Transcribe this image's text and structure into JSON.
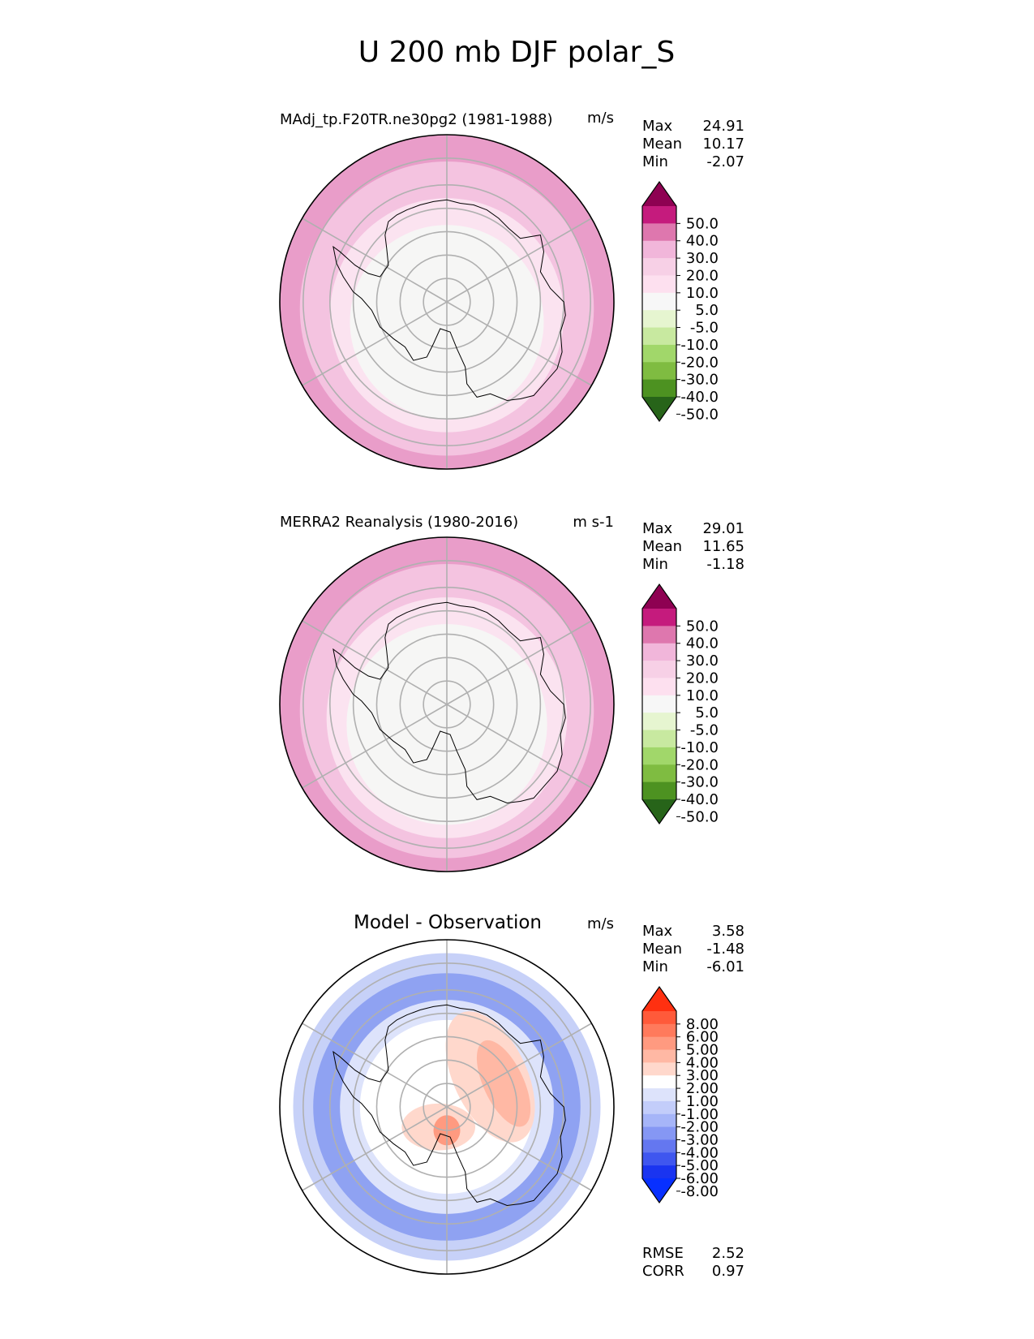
{
  "page": {
    "title": "U 200 mb DJF polar_S"
  },
  "panels": [
    {
      "title": "MAdj_tp.F20TR.ne30pg2 (1981-1988)",
      "title_style": "small",
      "units": "m/s",
      "stats": [
        {
          "label": "Max",
          "value": "24.91"
        },
        {
          "label": "Mean",
          "value": "10.17"
        },
        {
          "label": "Min",
          "value": "-2.07"
        }
      ],
      "colorbar": {
        "labels": [
          "50.0",
          "40.0",
          "30.0",
          "20.0",
          "10.0",
          "5.0",
          "-5.0",
          "-10.0",
          "-20.0",
          "-30.0",
          "-40.0",
          "-50.0"
        ],
        "colors": [
          "#8e0152",
          "#c51b7d",
          "#de77ae",
          "#f1b6da",
          "#f7d0e6",
          "#fde0ef",
          "#f7f7f7",
          "#e6f5d0",
          "#c8e9a0",
          "#a1d76a",
          "#7fbc41",
          "#4d9221",
          "#276419"
        ]
      },
      "fill_levels": [
        {
          "r": 1.0,
          "color": "#e99dc9"
        },
        {
          "r": 0.88,
          "color": "#f4c3e0"
        },
        {
          "r": 0.7,
          "color": "#fbe3f0"
        },
        {
          "r": 0.58,
          "color": "#f6f6f5"
        }
      ]
    },
    {
      "title": "MERRA2 Reanalysis (1980-2016)",
      "title_style": "small",
      "units": "m s-1",
      "stats": [
        {
          "label": "Max",
          "value": "29.01"
        },
        {
          "label": "Mean",
          "value": "11.65"
        },
        {
          "label": "Min",
          "value": "-1.18"
        }
      ],
      "colorbar": {
        "labels": [
          "50.0",
          "40.0",
          "30.0",
          "20.0",
          "10.0",
          "5.0",
          "-5.0",
          "-10.0",
          "-20.0",
          "-30.0",
          "-40.0",
          "-50.0"
        ],
        "colors": [
          "#8e0152",
          "#c51b7d",
          "#de77ae",
          "#f1b6da",
          "#f7d0e6",
          "#fde0ef",
          "#f7f7f7",
          "#e6f5d0",
          "#c8e9a0",
          "#a1d76a",
          "#7fbc41",
          "#4d9221",
          "#276419"
        ]
      },
      "fill_levels": [
        {
          "r": 1.0,
          "color": "#e99dc9"
        },
        {
          "r": 0.88,
          "color": "#f4c3e0"
        },
        {
          "r": 0.72,
          "color": "#fbe3f0"
        },
        {
          "r": 0.6,
          "color": "#f6f6f5"
        }
      ]
    },
    {
      "title": "Model - Observation",
      "title_style": "large",
      "units": "m/s",
      "stats": [
        {
          "label": "Max",
          "value": "3.58"
        },
        {
          "label": "Mean",
          "value": "-1.48"
        },
        {
          "label": "Min",
          "value": "-6.01"
        }
      ],
      "colorbar": {
        "labels": [
          "8.00",
          "6.00",
          "5.00",
          "4.00",
          "3.00",
          "2.00",
          "1.00",
          "-1.00",
          "-2.00",
          "-3.00",
          "-4.00",
          "-5.00",
          "-6.00",
          "-8.00"
        ],
        "colors": [
          "#ff3010",
          "#ff5a3a",
          "#ff7a5c",
          "#ff9a80",
          "#ffb8a4",
          "#ffd8cc",
          "#ffffff",
          "#dde3fb",
          "#c3cdfa",
          "#a6b5f8",
          "#8597f4",
          "#6477f0",
          "#3f56ef",
          "#1a34f0",
          "#0830ff"
        ]
      },
      "fill_levels": [
        {
          "r": 1.0,
          "color": "#ffffff"
        },
        {
          "r": 0.92,
          "color": "#c7d1f8"
        },
        {
          "r": 0.8,
          "color": "#8fa2f2"
        },
        {
          "r": 0.64,
          "color": "#dde3fb"
        },
        {
          "r": 0.52,
          "color": "#ffffff"
        }
      ],
      "metrics": [
        {
          "label": "RMSE",
          "value": "2.52"
        },
        {
          "label": "CORR",
          "value": "0.97"
        }
      ]
    }
  ],
  "chart_data": [
    {
      "type": "heatmap",
      "title": "MAdj_tp.F20TR.ne30pg2 (1981-1988)",
      "units": "m/s",
      "projection": "polar_S",
      "levels": [
        -50,
        -40,
        -30,
        -20,
        -10,
        -5,
        5,
        10,
        20,
        30,
        40,
        50
      ],
      "stats": {
        "max": 24.91,
        "mean": 10.17,
        "min": -2.07
      }
    },
    {
      "type": "heatmap",
      "title": "MERRA2 Reanalysis (1980-2016)",
      "units": "m s-1",
      "projection": "polar_S",
      "levels": [
        -50,
        -40,
        -30,
        -20,
        -10,
        -5,
        5,
        10,
        20,
        30,
        40,
        50
      ],
      "stats": {
        "max": 29.01,
        "mean": 11.65,
        "min": -1.18
      }
    },
    {
      "type": "heatmap",
      "title": "Model - Observation",
      "units": "m/s",
      "projection": "polar_S",
      "levels": [
        -8,
        -6,
        -5,
        -4,
        -3,
        -2,
        -1,
        1,
        2,
        3,
        4,
        5,
        6,
        8
      ],
      "stats": {
        "max": 3.58,
        "mean": -1.48,
        "min": -6.01,
        "rmse": 2.52,
        "corr": 0.97
      }
    }
  ]
}
